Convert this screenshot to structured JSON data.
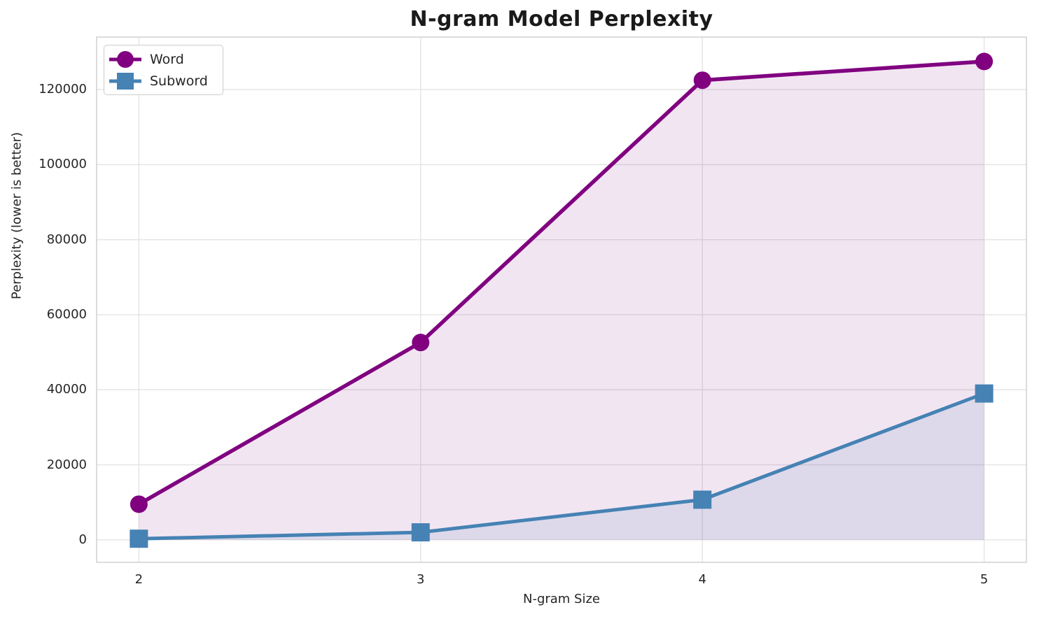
{
  "chart_data": {
    "type": "line",
    "title": "N-gram Model Perplexity",
    "xlabel": "N-gram Size",
    "ylabel": "Perplexity (lower is better)",
    "x": [
      2,
      3,
      4,
      5
    ],
    "series": [
      {
        "name": "Word",
        "color": "#800080",
        "marker": "circle",
        "line_width": 5.5,
        "fill_alpha": 0.1,
        "values": [
          9500,
          52600,
          122500,
          127500
        ]
      },
      {
        "name": "Subword",
        "color": "#4682b4",
        "marker": "square",
        "line_width": 5,
        "fill_alpha": 0.12,
        "values": [
          300,
          2000,
          10700,
          39000
        ]
      }
    ],
    "fill_baseline": 0,
    "xticks": [
      2,
      3,
      4,
      5
    ],
    "xtick_labels": [
      "2",
      "3",
      "4",
      "5"
    ],
    "yticks": [
      0,
      20000,
      40000,
      60000,
      80000,
      100000,
      120000
    ],
    "ytick_labels": [
      "0",
      "20000",
      "40000",
      "60000",
      "80000",
      "100000",
      "120000"
    ],
    "xlim": [
      1.85,
      5.15
    ],
    "ylim": [
      -6000,
      134000
    ],
    "grid": true,
    "legend_position": "upper-left",
    "colors": {
      "grid": "#e4e4e4",
      "spine": "#d0d0d0",
      "text": "#262626",
      "title": "#1a1a1a",
      "background": "#ffffff"
    }
  }
}
